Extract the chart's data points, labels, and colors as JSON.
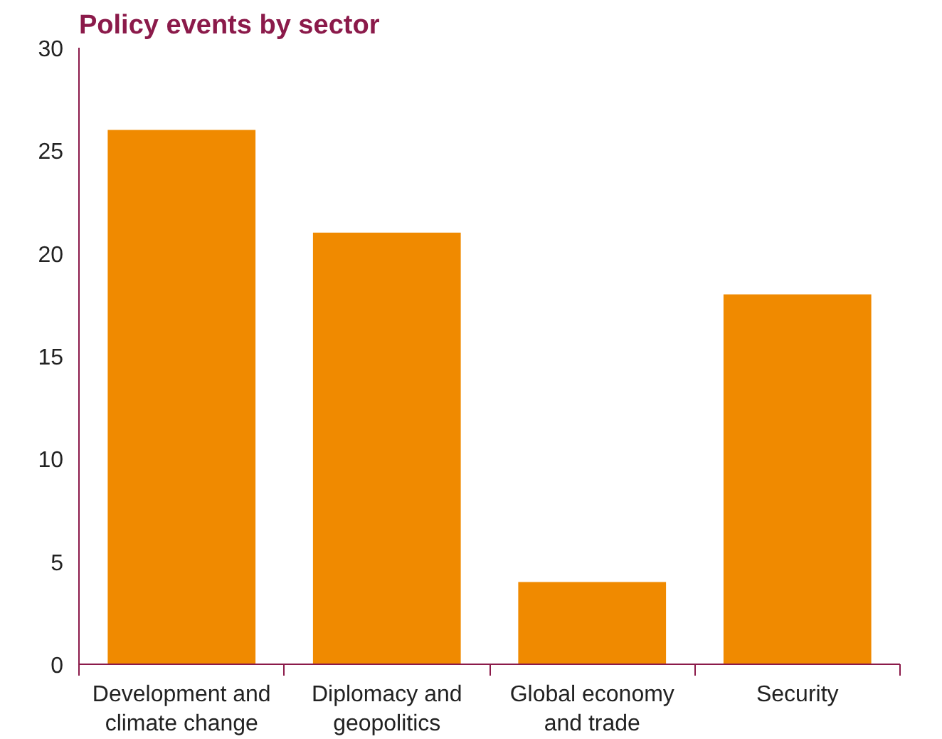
{
  "chart_data": {
    "type": "bar",
    "title": "Policy events by sector",
    "categories": [
      "Development and\nclimate change",
      "Diplomacy and\ngeopolitics",
      "Global economy\nand trade",
      "Security"
    ],
    "values": [
      26,
      21,
      4,
      18
    ],
    "color": "#f08a00",
    "ylim": [
      0,
      30
    ],
    "yticks": [
      0,
      5,
      10,
      15,
      20,
      25,
      30
    ],
    "grid": false
  }
}
